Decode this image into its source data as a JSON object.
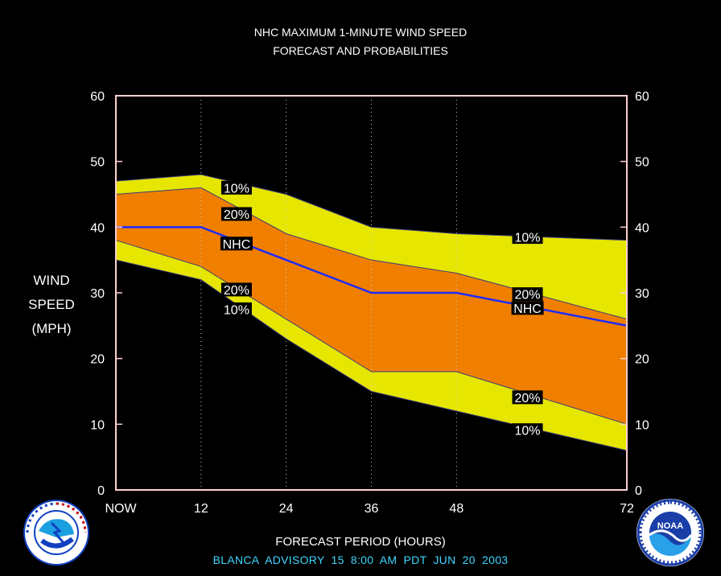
{
  "chart_data": {
    "type": "area",
    "title": "NHC MAXIMUM 1-MINUTE WIND SPEED",
    "subtitle": "FORECAST AND PROBABILITIES",
    "ylabel": [
      "WIND",
      "SPEED",
      "(MPH)"
    ],
    "xlabel": "FORECAST PERIOD (HOURS)",
    "footer": "BLANCA  ADVISORY  15 8:00 AM PDT JUN 20 2003",
    "x": [
      0,
      12,
      24,
      36,
      48,
      72
    ],
    "x_tick_labels": [
      "NOW",
      "12",
      "24",
      "36",
      "48",
      "72"
    ],
    "y_ticks": [
      "0",
      "10",
      "20",
      "30",
      "40",
      "50",
      "60"
    ],
    "xlim": [
      0,
      72
    ],
    "ylim": [
      0,
      60
    ],
    "series": [
      {
        "name": "10%",
        "upper": [
          47,
          48,
          45,
          40,
          39,
          38
        ],
        "lower": [
          35,
          32,
          23,
          15,
          12,
          6
        ]
      },
      {
        "name": "20%",
        "upper": [
          45,
          46,
          39,
          35,
          33,
          26
        ],
        "lower": [
          38,
          34,
          26,
          18,
          18,
          10
        ]
      },
      {
        "name": "NHC",
        "values": [
          40,
          40,
          35,
          30,
          30,
          25
        ]
      }
    ],
    "annotations": [
      {
        "text": "10%",
        "x": 17,
        "y": 46
      },
      {
        "text": "20%",
        "x": 17,
        "y": 42
      },
      {
        "text": "NHC",
        "x": 17,
        "y": 37.5
      },
      {
        "text": "20%",
        "x": 17,
        "y": 30.5
      },
      {
        "text": "10%",
        "x": 17,
        "y": 27.5
      },
      {
        "text": "10%",
        "x": 58,
        "y": 38.5
      },
      {
        "text": "20%",
        "x": 58,
        "y": 29.8
      },
      {
        "text": "NHC",
        "x": 58,
        "y": 27.7
      },
      {
        "text": "20%",
        "x": 58,
        "y": 14.1
      },
      {
        "text": "10%",
        "x": 58,
        "y": 9.1
      }
    ],
    "colors": {
      "band10": "#e6e600",
      "band20": "#f07f00",
      "nhc": "#1f2bff",
      "frame": "#ffd0d0"
    },
    "grid": "dotted vertical lines at forecast hours"
  },
  "logos": {
    "left": {
      "name": "national-weather-service-logo",
      "text": "NATIONAL WEATHER SERVICE"
    },
    "right": {
      "name": "noaa-logo",
      "text": "NOAA"
    }
  }
}
